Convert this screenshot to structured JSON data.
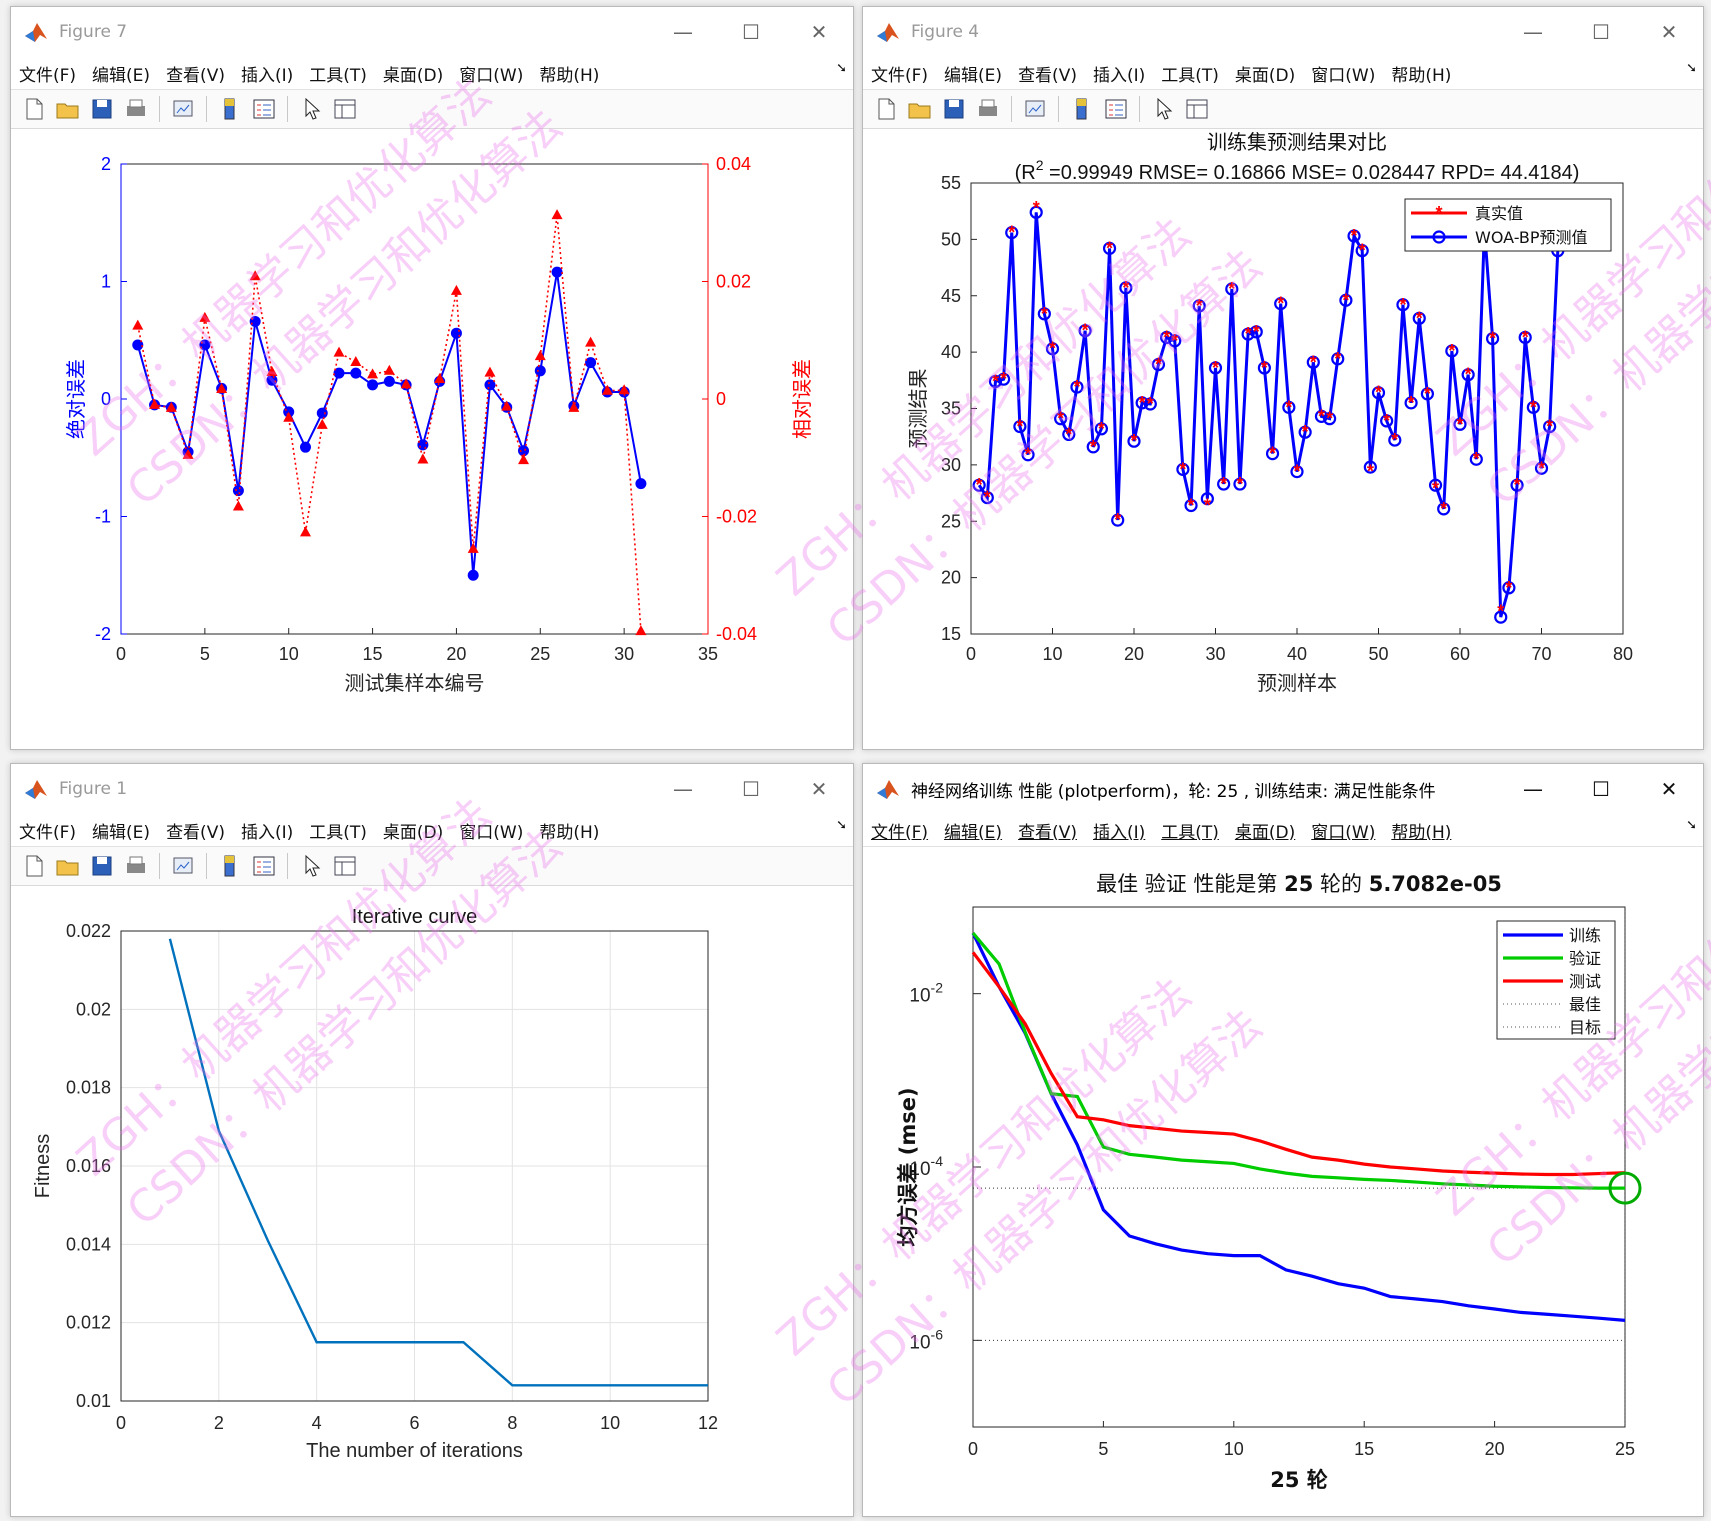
{
  "menu": [
    "文件(F)",
    "编辑(E)",
    "查看(V)",
    "插入(I)",
    "工具(T)",
    "桌面(D)",
    "窗口(W)",
    "帮助(H)"
  ],
  "toolbar_icons": [
    "new-file-icon",
    "open-folder-icon",
    "save-icon",
    "print-icon",
    "link-plot-icon",
    "colorbar-icon",
    "legend-icon",
    "pointer-icon",
    "property-inspector-icon"
  ],
  "windows": {
    "fig7": {
      "title": "Figure 7"
    },
    "fig4": {
      "title": "Figure 4"
    },
    "fig1": {
      "title": "Figure 1"
    },
    "perf": {
      "title": "神经网络训练 性能 (plotperform)，轮: 25 , 训练结束: 满足性能条件"
    }
  },
  "watermark": {
    "text": "ZGH：机器学习和优化算法",
    "text2": "CSDN：机器学习和优化算法",
    "color": "#ea6eea"
  },
  "chart_data": [
    {
      "id": "fig7",
      "type": "line",
      "xlabel": "测试集样本编号",
      "ylabel_left": "绝对误差",
      "ylabel_right": "相对误差",
      "xlim": [
        0,
        35
      ],
      "xticks": [
        0,
        5,
        10,
        15,
        20,
        25,
        30,
        35
      ],
      "ylim_left": [
        -2,
        2
      ],
      "yticks_left": [
        -2,
        -1,
        0,
        1,
        2
      ],
      "ylim_right": [
        -0.04,
        0.04
      ],
      "yticks_right": [
        "-0.04",
        "-0.02",
        "0",
        "0.02",
        "0.04"
      ],
      "x": [
        1,
        2,
        3,
        4,
        5,
        6,
        7,
        8,
        9,
        10,
        11,
        12,
        13,
        14,
        15,
        16,
        17,
        18,
        19,
        20,
        21,
        22,
        23,
        24,
        25,
        26,
        27,
        28,
        29,
        30,
        31
      ],
      "series": [
        {
          "color": "#0000ff",
          "marker": "circle",
          "axis": "left",
          "values": [
            0.46,
            -0.05,
            -0.07,
            -0.45,
            0.46,
            0.09,
            -0.78,
            0.66,
            0.16,
            -0.11,
            -0.41,
            -0.12,
            0.22,
            0.22,
            0.12,
            0.15,
            0.12,
            -0.39,
            0.15,
            0.56,
            -1.5,
            0.12,
            -0.07,
            -0.44,
            0.24,
            1.08,
            -0.06,
            0.31,
            0.06,
            0.06,
            -0.72
          ]
        },
        {
          "color": "#ff0000",
          "marker": "triangle",
          "axis": "right",
          "values": [
            0.0125,
            -0.001,
            -0.0015,
            -0.0095,
            0.0138,
            0.0017,
            -0.0183,
            0.0209,
            0.0046,
            -0.0032,
            -0.0227,
            -0.0044,
            0.0079,
            0.0063,
            0.0042,
            0.0048,
            0.0025,
            -0.0103,
            0.0034,
            0.0184,
            -0.0255,
            0.0045,
            -0.0013,
            -0.0104,
            0.0073,
            0.0313,
            -0.0015,
            0.0096,
            0.0014,
            0.0015,
            -0.0395
          ]
        }
      ]
    },
    {
      "id": "fig4",
      "type": "line",
      "title": "训练集预测结果对比",
      "subtitle_parts": [
        "(R",
        "2",
        " =0.99949 RMSE= 0.16866 MSE= 0.028447 RPD= 44.4184)"
      ],
      "xlabel": "预测样本",
      "ylabel": "预测结果",
      "xlim": [
        0,
        80
      ],
      "xticks": [
        0,
        10,
        20,
        30,
        40,
        50,
        60,
        70,
        80
      ],
      "ylim": [
        15,
        55
      ],
      "yticks": [
        15,
        20,
        25,
        30,
        35,
        40,
        45,
        50,
        55
      ],
      "legend": [
        "真实值",
        "WOA-BP预测值"
      ],
      "legend_position": "top-right",
      "x": [
        1,
        2,
        3,
        4,
        5,
        6,
        7,
        8,
        9,
        10,
        11,
        12,
        13,
        14,
        15,
        16,
        17,
        18,
        19,
        20,
        21,
        22,
        23,
        24,
        25,
        26,
        27,
        28,
        29,
        30,
        31,
        32,
        33,
        34,
        35,
        36,
        37,
        38,
        39,
        40,
        41,
        42,
        43,
        44,
        45,
        46,
        47,
        48,
        49,
        50,
        51,
        52,
        53,
        54,
        55,
        56,
        57,
        58,
        59,
        60,
        61,
        62,
        63,
        64,
        65,
        66,
        67,
        68,
        69,
        70,
        71,
        72
      ],
      "series": [
        {
          "name": "真实值",
          "color": "#ff0000",
          "marker": "star",
          "values": [
            28.2,
            27.1,
            37.4,
            37.6,
            50.6,
            33.4,
            30.9,
            52.8,
            43.4,
            40.3,
            34.1,
            32.7,
            36.9,
            41.9,
            31.6,
            33.2,
            49.2,
            25.1,
            45.7,
            32.1,
            35.5,
            35.4,
            38.9,
            41.3,
            41.0,
            29.6,
            26.4,
            44.1,
            26.4,
            38.6,
            28.3,
            45.6,
            28.3,
            41.6,
            41.8,
            38.6,
            31.0,
            44.3,
            35.1,
            29.4,
            32.9,
            39.1,
            34.3,
            34.1,
            39.4,
            44.6,
            50.3,
            49.0,
            29.4,
            36.4,
            33.9,
            32.2,
            44.2,
            35.5,
            43.0,
            36.3,
            27.9,
            26.1,
            40.1,
            33.6,
            38.0,
            30.5,
            50.9,
            41.2,
            17.0,
            19.1,
            28.2,
            41.3,
            35.1,
            29.7,
            33.4,
            49.0
          ]
        },
        {
          "name": "WOA-BP预测值",
          "color": "#0000ff",
          "marker": "circle",
          "values": [
            28.2,
            27.1,
            37.4,
            37.6,
            50.6,
            33.4,
            30.9,
            52.4,
            43.4,
            40.3,
            34.1,
            32.7,
            36.9,
            41.9,
            31.6,
            33.2,
            49.2,
            25.1,
            45.7,
            32.1,
            35.5,
            35.4,
            38.9,
            41.3,
            41.0,
            29.6,
            26.4,
            44.1,
            27.0,
            38.6,
            28.3,
            45.6,
            28.3,
            41.6,
            41.8,
            38.6,
            31.0,
            44.3,
            35.1,
            29.4,
            32.9,
            39.1,
            34.3,
            34.1,
            39.4,
            44.6,
            50.3,
            49.0,
            29.8,
            36.4,
            33.9,
            32.2,
            44.2,
            35.5,
            43.0,
            36.3,
            28.2,
            26.1,
            40.1,
            33.6,
            38.0,
            30.5,
            50.9,
            41.2,
            16.5,
            19.1,
            28.2,
            41.3,
            35.1,
            29.7,
            33.4,
            49.0
          ]
        }
      ]
    },
    {
      "id": "fig1",
      "type": "line",
      "title": "Iterative curve",
      "xlabel": "The number of iterations",
      "ylabel": "Fitness",
      "xlim": [
        0,
        12
      ],
      "xticks": [
        0,
        2,
        4,
        6,
        8,
        10,
        12
      ],
      "ylim": [
        0.01,
        0.022
      ],
      "yticks": [
        "0.01",
        "0.012",
        "0.014",
        "0.016",
        "0.018",
        "0.02",
        "0.022"
      ],
      "grid": true,
      "x": [
        1,
        2,
        3,
        4,
        5,
        6,
        7,
        8,
        9,
        10,
        11,
        12
      ],
      "series": [
        {
          "color": "#0072bd",
          "values": [
            0.0218,
            0.0169,
            0.0141,
            0.0115,
            0.0115,
            0.0115,
            0.0115,
            0.0104,
            0.0104,
            0.0104,
            0.0104,
            0.0104
          ]
        }
      ]
    },
    {
      "id": "perf",
      "type": "line",
      "title_parts": [
        "最佳 验证 性能是第 ",
        "25",
        " 轮的 ",
        "5.7082e-05"
      ],
      "xlabel_parts": [
        "25",
        " 轮"
      ],
      "ylabel": "均方误差 (mse)",
      "yscale": "log",
      "xlim": [
        0,
        25
      ],
      "xticks": [
        0,
        5,
        10,
        15,
        20,
        25
      ],
      "ylim": [
        1e-07,
        0.1
      ],
      "yticks": [
        {
          "base": "10",
          "exp": "-6"
        },
        {
          "base": "10",
          "exp": "-4"
        },
        {
          "base": "10",
          "exp": "-2"
        }
      ],
      "legend": [
        "训练",
        "验证",
        "测试",
        "最佳",
        "目标"
      ],
      "legend_position": "top-right",
      "x": [
        0,
        1,
        2,
        3,
        4,
        5,
        6,
        7,
        8,
        9,
        10,
        11,
        12,
        13,
        14,
        15,
        16,
        17,
        18,
        19,
        20,
        21,
        22,
        23,
        24,
        25
      ],
      "series": [
        {
          "name": "训练",
          "color": "#0000ff",
          "values": [
            0.05,
            0.012,
            0.0035,
            0.0007,
            0.00018,
            3.2e-05,
            1.6e-05,
            1.3e-05,
            1.1e-05,
            1e-05,
            9.5e-06,
            9.5e-06,
            6.5e-06,
            5.5e-06,
            4.5e-06,
            4e-06,
            3.2e-06,
            3e-06,
            2.8e-06,
            2.5e-06,
            2.3e-06,
            2.1e-06,
            2e-06,
            1.9e-06,
            1.8e-06,
            1.7e-06
          ]
        },
        {
          "name": "验证",
          "color": "#00cc00",
          "values": [
            0.05,
            0.022,
            0.0036,
            0.0007,
            0.00065,
            0.00017,
            0.00014,
            0.00013,
            0.00012,
            0.000115,
            0.00011,
            9.5e-05,
            8.5e-05,
            7.8e-05,
            7.5e-05,
            7.2e-05,
            7e-05,
            6.7e-05,
            6.4e-05,
            6.2e-05,
            6e-05,
            5.9e-05,
            5.8e-05,
            5.75e-05,
            5.7e-05,
            5.7e-05
          ]
        },
        {
          "name": "测试",
          "color": "#ff0000",
          "values": [
            0.03,
            0.012,
            0.0045,
            0.0012,
            0.00038,
            0.00035,
            0.0003,
            0.00028,
            0.00026,
            0.00025,
            0.00024,
            0.0002,
            0.00016,
            0.00013,
            0.00012,
            0.000108,
            0.0001,
            9.5e-05,
            9e-05,
            8.7e-05,
            8.5e-05,
            8.3e-05,
            8.2e-05,
            8.2e-05,
            8.4e-05,
            8.6e-05
          ]
        }
      ],
      "best": {
        "epoch": 25,
        "value": 5.7082e-05,
        "name": "最佳"
      },
      "goal": {
        "value": 1e-06,
        "name": "目标"
      }
    }
  ]
}
